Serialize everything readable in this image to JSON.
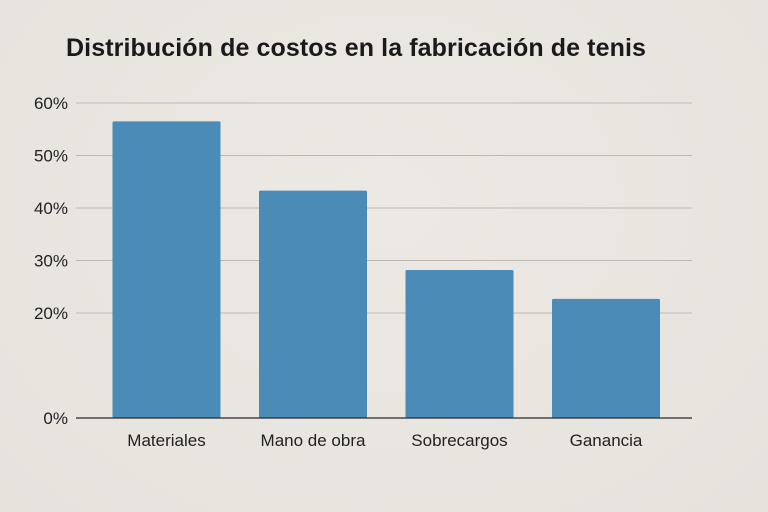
{
  "chart_data": {
    "type": "bar",
    "title": "Distribución de costos en la fabricación de tenis",
    "xlabel": "",
    "ylabel": "",
    "categories": [
      "Materiales",
      "Mano de obra",
      "Sobrecargos",
      "Ganancia"
    ],
    "values": [
      56.5,
      43.3,
      28.2,
      22.7
    ],
    "ylim": [
      0,
      60
    ],
    "yticks": [
      0,
      10,
      20,
      30,
      40,
      50,
      60
    ],
    "ytick_labels": [
      "0%",
      "",
      "20%",
      "30%",
      "40%",
      "50%",
      "60%"
    ],
    "grid": true,
    "legend": "none",
    "bar_color": "#4a8bb8"
  }
}
